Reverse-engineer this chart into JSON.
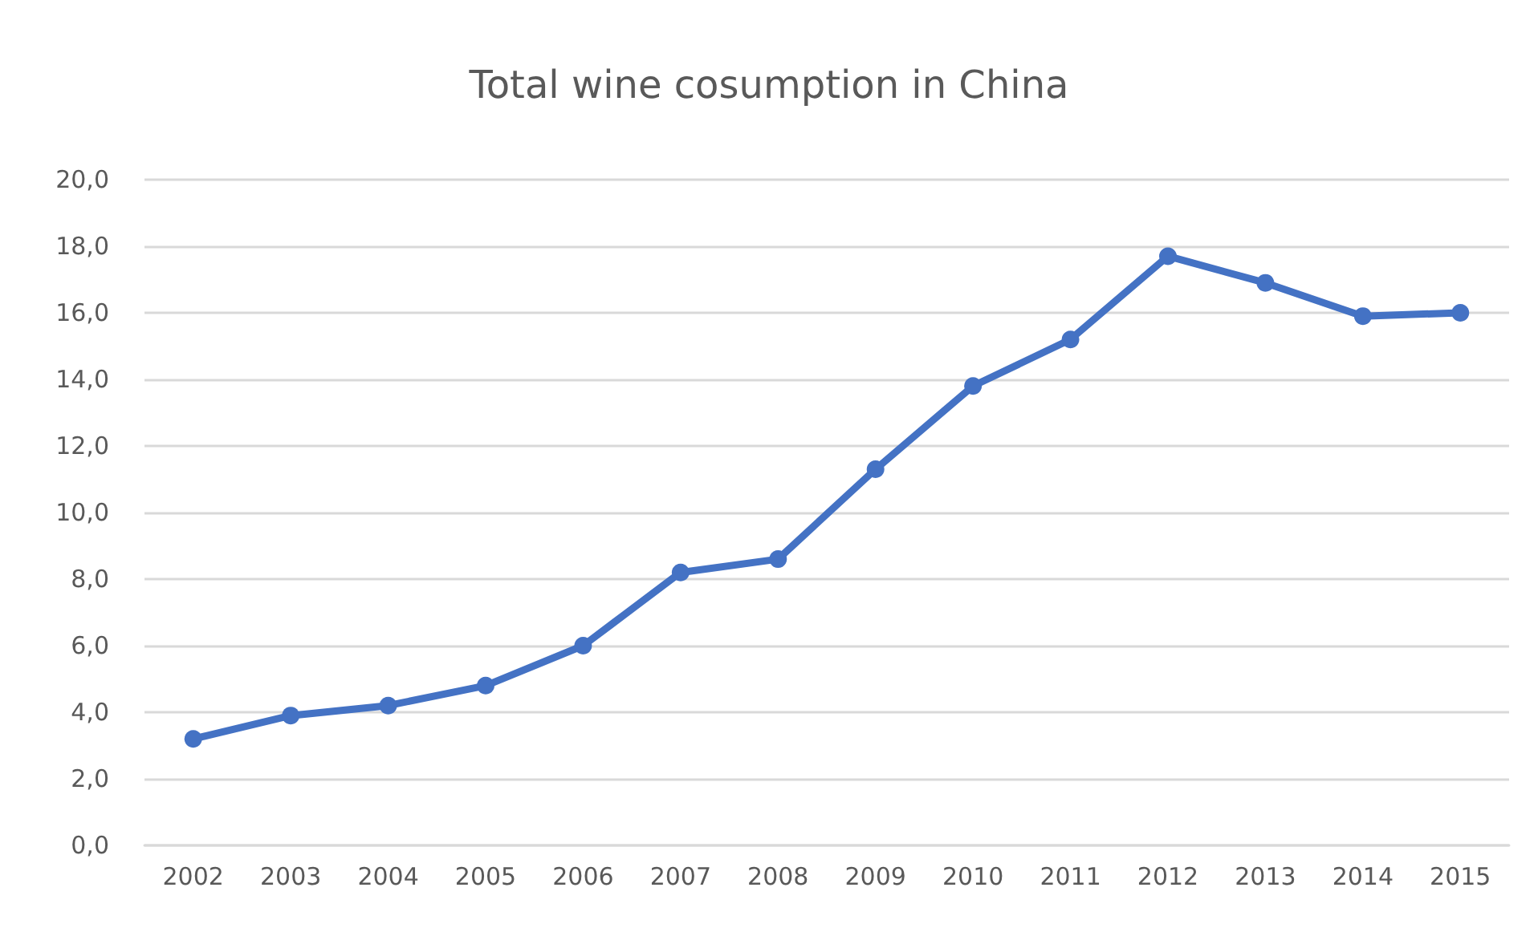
{
  "chart_data": {
    "type": "line",
    "title": "Total wine cosumption in China",
    "categories": [
      "2002",
      "2003",
      "2004",
      "2005",
      "2006",
      "2007",
      "2008",
      "2009",
      "2010",
      "2011",
      "2012",
      "2013",
      "2014",
      "2015"
    ],
    "series": [
      {
        "color": "#4472c4",
        "values": [
          3.2,
          3.9,
          4.2,
          4.8,
          6.0,
          8.2,
          8.6,
          11.3,
          13.8,
          15.2,
          17.7,
          16.9,
          15.9,
          16.0
        ]
      }
    ],
    "ylim": [
      0,
      20
    ],
    "yticks": [
      {
        "value": 0,
        "label": "0,0"
      },
      {
        "value": 2,
        "label": "2,0"
      },
      {
        "value": 4,
        "label": "4,0"
      },
      {
        "value": 6,
        "label": "6,0"
      },
      {
        "value": 8,
        "label": "8,0"
      },
      {
        "value": 10,
        "label": "10,0"
      },
      {
        "value": 12,
        "label": "12,0"
      },
      {
        "value": 14,
        "label": "14,0"
      },
      {
        "value": 16,
        "label": "16,0"
      },
      {
        "value": 18,
        "label": "18,0"
      },
      {
        "value": 20,
        "label": "20,0"
      }
    ],
    "grid": "y",
    "marker": "circle",
    "line_style": "solid"
  }
}
